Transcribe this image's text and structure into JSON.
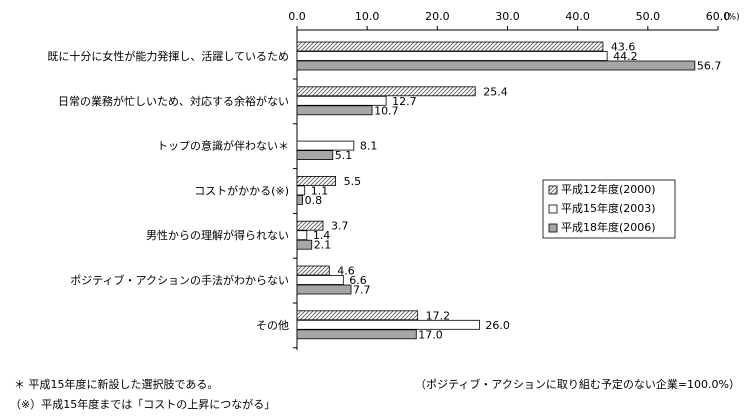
{
  "chart_data": {
    "type": "bar",
    "orientation": "horizontal",
    "unit": "(%)",
    "categories": [
      "既に十分に女性が能力発揮し、活躍しているため",
      "日常の業務が忙しいため、対応する余裕がない",
      "トップの意識が伴わない＊",
      "コストがかかる(※)",
      "男性からの理解が得られない",
      "ポジティブ・アクションの手法がわからない",
      "その他"
    ],
    "series": [
      {
        "name": "平成12年度(2000)",
        "color": "#ffffff",
        "pattern": "diagonal",
        "values": [
          43.6,
          25.4,
          null,
          5.5,
          3.7,
          4.6,
          17.2
        ],
        "value_labels": [
          "43.6",
          "25.4",
          null,
          "5.5",
          "3.7",
          "4.6",
          "17.2"
        ]
      },
      {
        "name": "平成15年度(2003)",
        "color": "#ffffff",
        "values": [
          44.2,
          12.7,
          8.1,
          1.1,
          1.4,
          6.6,
          26.0
        ],
        "value_labels": [
          "44.2",
          "12.7",
          "8.1",
          "1.1",
          "1.4",
          "6.6",
          "26.0"
        ]
      },
      {
        "name": "平成18年度(2006)",
        "color": "#a6a6a6",
        "values": [
          56.7,
          10.7,
          5.1,
          0.8,
          2.1,
          7.7,
          17.0
        ],
        "value_labels": [
          "56.7",
          "10.7",
          "5.1",
          "0.8",
          "2.1",
          "7.7",
          "17.0"
        ]
      }
    ],
    "xlim": [
      0,
      60
    ],
    "xticks": [
      {
        "value": 0,
        "label": "0.0"
      },
      {
        "value": 10,
        "label": "10.0"
      },
      {
        "value": 20,
        "label": "20.0"
      },
      {
        "value": 30,
        "label": "30.0"
      },
      {
        "value": 40,
        "label": "40.0"
      },
      {
        "value": 50,
        "label": "50.0"
      },
      {
        "value": 60,
        "label": "60.0"
      }
    ],
    "grid": false,
    "legend": "right",
    "notes": [
      "＊ 平成15年度に新設した選択肢である。",
      "（※）平成15年度までは「コストの上昇につながる」"
    ],
    "base_note": "（ポジティブ・アクションに取り組む予定のない企業=100.0%）"
  }
}
